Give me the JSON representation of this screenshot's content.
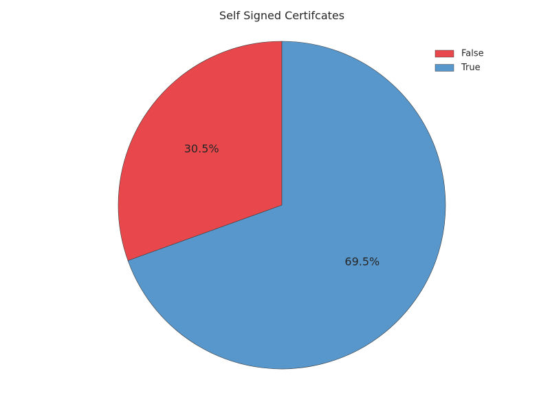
{
  "chart_data": {
    "type": "pie",
    "title": "Self Signed Certifcates",
    "legend_position": "top-right",
    "start_angle_deg": 90,
    "direction": "counterclockwise",
    "slices": [
      {
        "label": "False",
        "value": 30.5,
        "pct_label": "30.5%",
        "color": "#e8474b"
      },
      {
        "label": "True",
        "value": 69.5,
        "pct_label": "69.5%",
        "color": "#5897cb"
      }
    ],
    "edge_color": "#3a3a3a"
  }
}
